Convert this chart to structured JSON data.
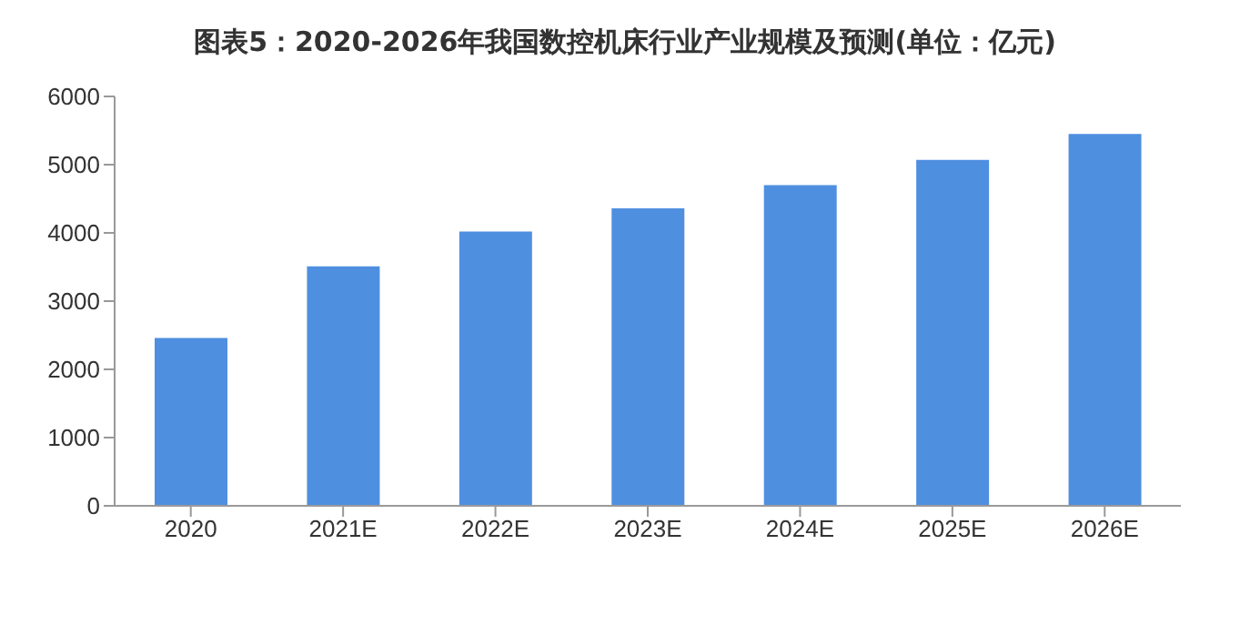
{
  "chart_data": {
    "type": "bar",
    "title": "图表5：2020-2026年我国数控机床行业产业规模及预测(单位：亿元)",
    "categories": [
      "2020",
      "2021E",
      "2022E",
      "2023E",
      "2024E",
      "2025E",
      "2026E"
    ],
    "values": [
      2460,
      3510,
      4020,
      4360,
      4700,
      5070,
      5450
    ],
    "color": "#4f8fe0",
    "ylim": [
      0,
      6000
    ],
    "yticks": [
      0,
      1000,
      2000,
      3000,
      4000,
      5000,
      6000
    ],
    "grid": false,
    "legend": false
  }
}
